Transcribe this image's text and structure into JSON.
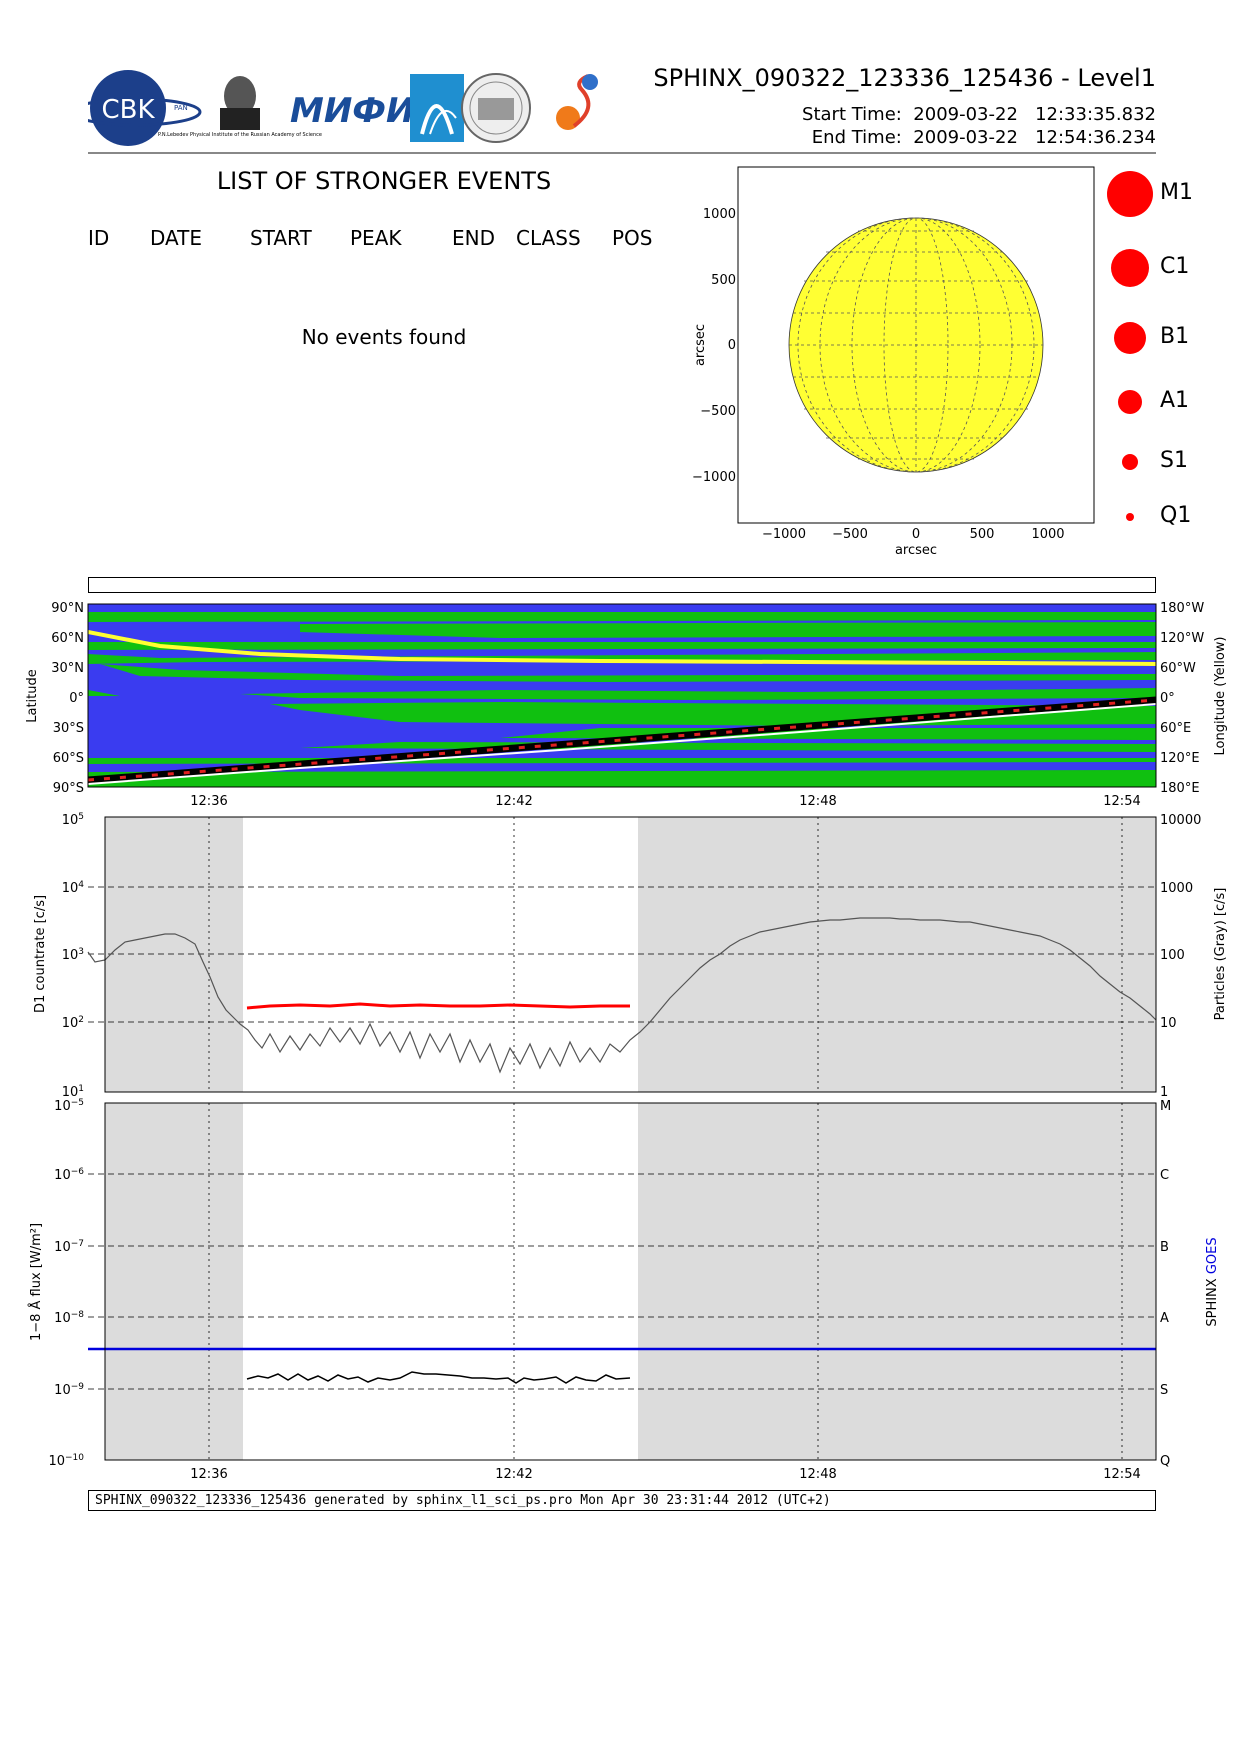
{
  "header": {
    "title": "SPHINX_090322_123336_125436 - Level1",
    "start_label": "Start Time:",
    "start_date": "2009-03-22",
    "start_time": "12:33:35.832",
    "end_label": "End Time:",
    "end_date": "2009-03-22",
    "end_time": "12:54:36.234",
    "logo_cbk": "CBK",
    "logo_cbk_sub": "PAN",
    "logo_lebedev": "P.N.Lebedev Physical Institute of the Russian Academy of Science",
    "logo_mifi": "МИФИ"
  },
  "events": {
    "title": "LIST OF STRONGER EVENTS",
    "columns": [
      "ID",
      "DATE",
      "START",
      "PEAK",
      "END",
      "CLASS",
      "POS"
    ],
    "empty_message": "No events found"
  },
  "sun_legend": [
    "M1",
    "C1",
    "B1",
    "A1",
    "S1",
    "Q1"
  ],
  "footer": "SPHINX_090322_123336_125436 generated by sphinx_l1_sci_ps.pro Mon Apr 30 23:31:44 2012 (UTC+2)",
  "colors": {
    "sun": "#ffff33",
    "blue_region": "#3a3cf0",
    "green_region": "#10c010",
    "gray_shade": "#dcdcdc",
    "red": "#ff0000",
    "goes_blue": "#0000dd"
  },
  "chart_data": [
    {
      "type": "scatter",
      "name": "sun_disk",
      "xlabel": "arcsec",
      "ylabel": "arcsec",
      "xlim": [
        -1350,
        1350
      ],
      "ylim": [
        -1350,
        1350
      ],
      "xticks": [
        "−1000",
        "−500",
        "0",
        "500",
        "1000"
      ],
      "yticks": [
        "1000",
        "500",
        "0",
        "−500",
        "−1000"
      ],
      "grid": true
    },
    {
      "type": "area",
      "name": "orbit_map",
      "ylabel": "Latitude",
      "y2label": "Longitude (Yellow)",
      "yticks_left": [
        "90°N",
        "60°N",
        "30°N",
        "0°",
        "30°S",
        "60°S",
        "90°S"
      ],
      "yticks_right": [
        "180°W",
        "120°W",
        "60°W",
        "0°",
        "60°E",
        "120°E",
        "180°E"
      ],
      "xticks": [
        "12:36",
        "12:42",
        "12:48",
        "12:54"
      ]
    },
    {
      "type": "line",
      "name": "d1_countrate",
      "ylabel": "D1 countrate [c/s]",
      "y2label": "Particles (Gray) [c/s]",
      "yscale": "log",
      "ylim": [
        10,
        100000
      ],
      "y2ticks": [
        "10000",
        "1000",
        "100",
        "10",
        "1"
      ],
      "xticks": [
        "12:36",
        "12:42",
        "12:48",
        "12:54"
      ],
      "series": [
        {
          "color": "#ff0000",
          "x": [
            "12:36:45",
            "12:38:00",
            "12:39:30",
            "12:41:00",
            "12:42:30",
            "12:44:00",
            "12:44:30"
          ],
          "values": [
            160,
            170,
            172,
            165,
            168,
            162,
            165
          ]
        }
      ]
    },
    {
      "type": "line",
      "name": "flux_1_8A",
      "ylabel": "1−8 Å flux [W/m²]",
      "y2label_parts": [
        "SPHINX",
        "GOES"
      ],
      "yscale": "log",
      "ylim": [
        1e-10,
        1e-05
      ],
      "y2ticks": [
        "M",
        "C",
        "B",
        "A",
        "S",
        "Q"
      ],
      "xticks": [
        "12:36",
        "12:42",
        "12:48",
        "12:54"
      ],
      "series": [
        {
          "color": "#0000dd",
          "x": [
            "12:33:36",
            "12:54:36"
          ],
          "values": [
            3.6e-09,
            3.6e-09
          ]
        },
        {
          "color": "#000000",
          "x": [
            "12:36:45",
            "12:38:00",
            "12:39:30",
            "12:41:00",
            "12:42:30",
            "12:44:00",
            "12:44:30"
          ],
          "values": [
            1.35e-09,
            1.4e-09,
            1.3e-09,
            1.5e-09,
            1.3e-09,
            1.35e-09,
            1.45e-09
          ]
        }
      ]
    }
  ]
}
